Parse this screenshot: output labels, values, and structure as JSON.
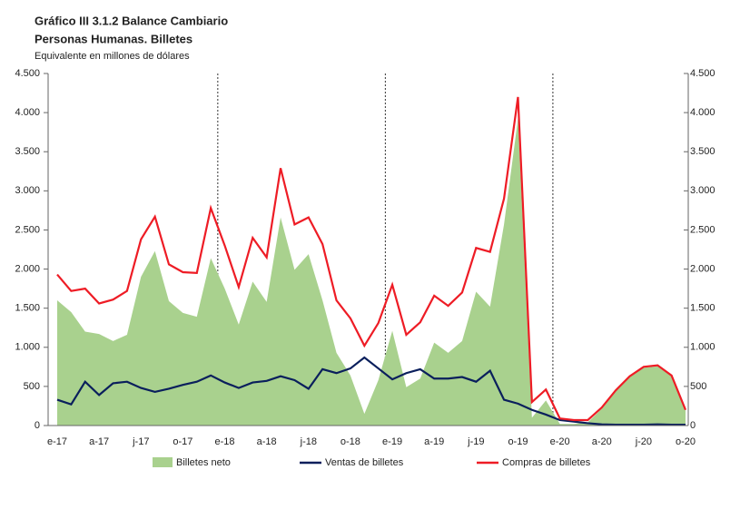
{
  "chart_data": {
    "type": "line",
    "title": "Gráfico III 3.1.2 Balance Cambiario",
    "subtitle": "Personas Humanas. Billetes",
    "ylabel": "Equivalente en millones de dólares",
    "categories": [
      "e-17",
      null,
      null,
      "a-17",
      null,
      null,
      "j-17",
      null,
      null,
      "o-17",
      null,
      null,
      "e-18",
      null,
      null,
      "a-18",
      null,
      null,
      "j-18",
      null,
      null,
      "o-18",
      null,
      null,
      "e-19",
      null,
      null,
      "a-19",
      null,
      null,
      "j-19",
      null,
      null,
      "o-19",
      null,
      null,
      "e-20",
      null,
      null,
      "a-20",
      null,
      null,
      "j-20",
      null,
      null,
      "o-20"
    ],
    "series": [
      {
        "name": "Billetes neto",
        "color": "#a9d18e",
        "kind": "area",
        "values": [
          1600,
          1450,
          1200,
          1170,
          1080,
          1160,
          1900,
          2230,
          1590,
          1440,
          1390,
          2140,
          1750,
          1290,
          1840,
          1580,
          2660,
          1990,
          2190,
          1600,
          930,
          640,
          150,
          580,
          1210,
          490,
          600,
          1060,
          930,
          1080,
          1710,
          1520,
          2570,
          3920,
          100,
          320,
          20,
          20,
          40,
          215,
          440,
          620,
          740,
          755,
          630,
          190
        ]
      },
      {
        "name": "Ventas de billetes",
        "color": "#0a1f5c",
        "kind": "line",
        "values": [
          330,
          270,
          560,
          390,
          540,
          560,
          480,
          430,
          470,
          520,
          560,
          640,
          550,
          480,
          550,
          570,
          630,
          580,
          470,
          720,
          670,
          730,
          870,
          730,
          590,
          670,
          720,
          600,
          600,
          620,
          560,
          700,
          330,
          280,
          200,
          140,
          70,
          50,
          30,
          15,
          10,
          10,
          10,
          15,
          10,
          10
        ]
      },
      {
        "name": "Compras de billetes",
        "color": "#ee1c25",
        "kind": "line",
        "values": [
          1930,
          1720,
          1750,
          1560,
          1610,
          1720,
          2380,
          2670,
          2060,
          1960,
          1950,
          2780,
          2300,
          1770,
          2400,
          2150,
          3290,
          2570,
          2660,
          2320,
          1600,
          1370,
          1020,
          1310,
          1800,
          1160,
          1320,
          1660,
          1530,
          1700,
          2270,
          2220,
          2900,
          4200,
          300,
          460,
          90,
          70,
          70,
          230,
          450,
          630,
          750,
          770,
          640,
          200
        ]
      }
    ],
    "ylim": [
      0,
      4500
    ],
    "yticks": [
      0,
      500,
      {
        "value": 1000,
        "label": "1.000"
      },
      {
        "value": 1500,
        "label": "1.500"
      },
      {
        "value": 2000,
        "label": "2.000"
      },
      {
        "value": 2500,
        "label": "2.500"
      },
      {
        "value": 3000,
        "label": "3.000"
      },
      {
        "value": 3500,
        "label": "3.500"
      },
      {
        "value": 4000,
        "label": "4.000"
      },
      {
        "value": 4500,
        "label": "4.500"
      }
    ]
  }
}
